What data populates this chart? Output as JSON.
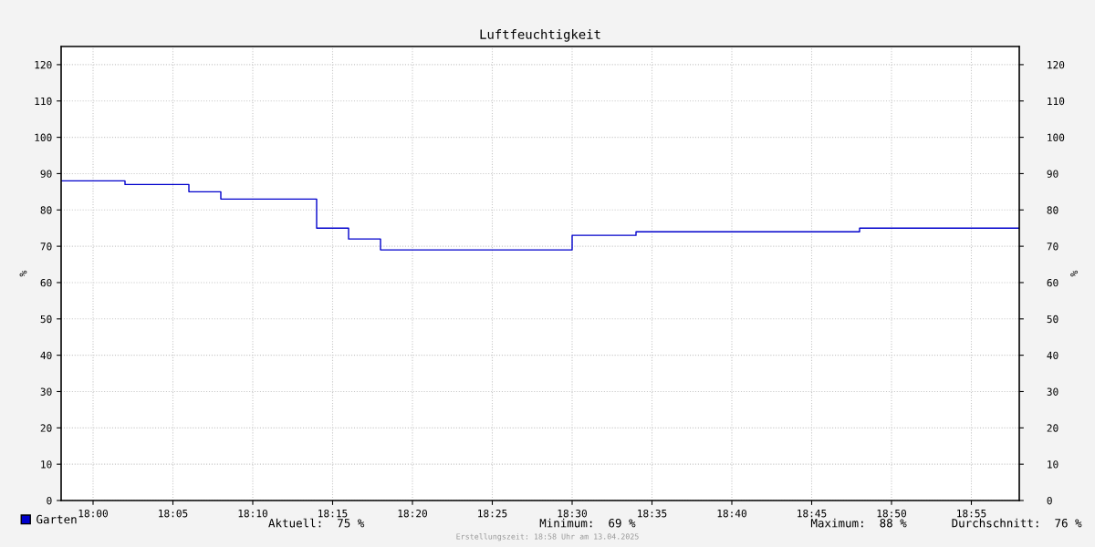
{
  "chart_data": {
    "type": "step",
    "title": "Luftfeuchtigkeit",
    "ylabel": "%",
    "y2label": "%",
    "x": [
      "2025-04-13T17:58",
      "2025-04-13T18:02",
      "2025-04-13T18:06",
      "2025-04-13T18:08",
      "2025-04-13T18:14",
      "2025-04-13T18:16",
      "2025-04-13T18:18",
      "2025-04-13T18:30",
      "2025-04-13T18:34",
      "2025-04-13T18:48",
      "2025-04-13T18:58"
    ],
    "series": [
      {
        "name": "Garten",
        "color": "#0000cc",
        "values": [
          88,
          87,
          85,
          83,
          75,
          72,
          69,
          73,
          74,
          75,
          75
        ]
      }
    ],
    "xlim": [
      "2025-04-13T17:58",
      "2025-04-13T18:58"
    ],
    "xticks": [
      {
        "value": "2025-04-13T18:00",
        "label": "18:00"
      },
      {
        "value": "2025-04-13T18:05",
        "label": "18:05"
      },
      {
        "value": "2025-04-13T18:10",
        "label": "18:10"
      },
      {
        "value": "2025-04-13T18:15",
        "label": "18:15"
      },
      {
        "value": "2025-04-13T18:20",
        "label": "18:20"
      },
      {
        "value": "2025-04-13T18:25",
        "label": "18:25"
      },
      {
        "value": "2025-04-13T18:30",
        "label": "18:30"
      },
      {
        "value": "2025-04-13T18:35",
        "label": "18:35"
      },
      {
        "value": "2025-04-13T18:40",
        "label": "18:40"
      },
      {
        "value": "2025-04-13T18:45",
        "label": "18:45"
      },
      {
        "value": "2025-04-13T18:50",
        "label": "18:50"
      },
      {
        "value": "2025-04-13T18:55",
        "label": "18:55"
      }
    ],
    "ylim": [
      0,
      125
    ],
    "yticks": [
      0,
      10,
      20,
      30,
      40,
      50,
      60,
      70,
      80,
      90,
      100,
      110,
      120
    ],
    "y2lim": [
      0,
      125
    ],
    "y2ticks": [
      0,
      10,
      20,
      30,
      40,
      50,
      60,
      70,
      80,
      90,
      100,
      110,
      120
    ],
    "grid": true,
    "legend": "bottom left",
    "marker": "none",
    "line_style": "solid",
    "annotations": [
      "Aktuell:  75 %",
      "Minimum:  69 %",
      "Maximum:  88 %",
      "Durchschnitt:  76 %",
      "Erstellungszeit: 18:58 Uhr am 13.04.2025"
    ]
  }
}
